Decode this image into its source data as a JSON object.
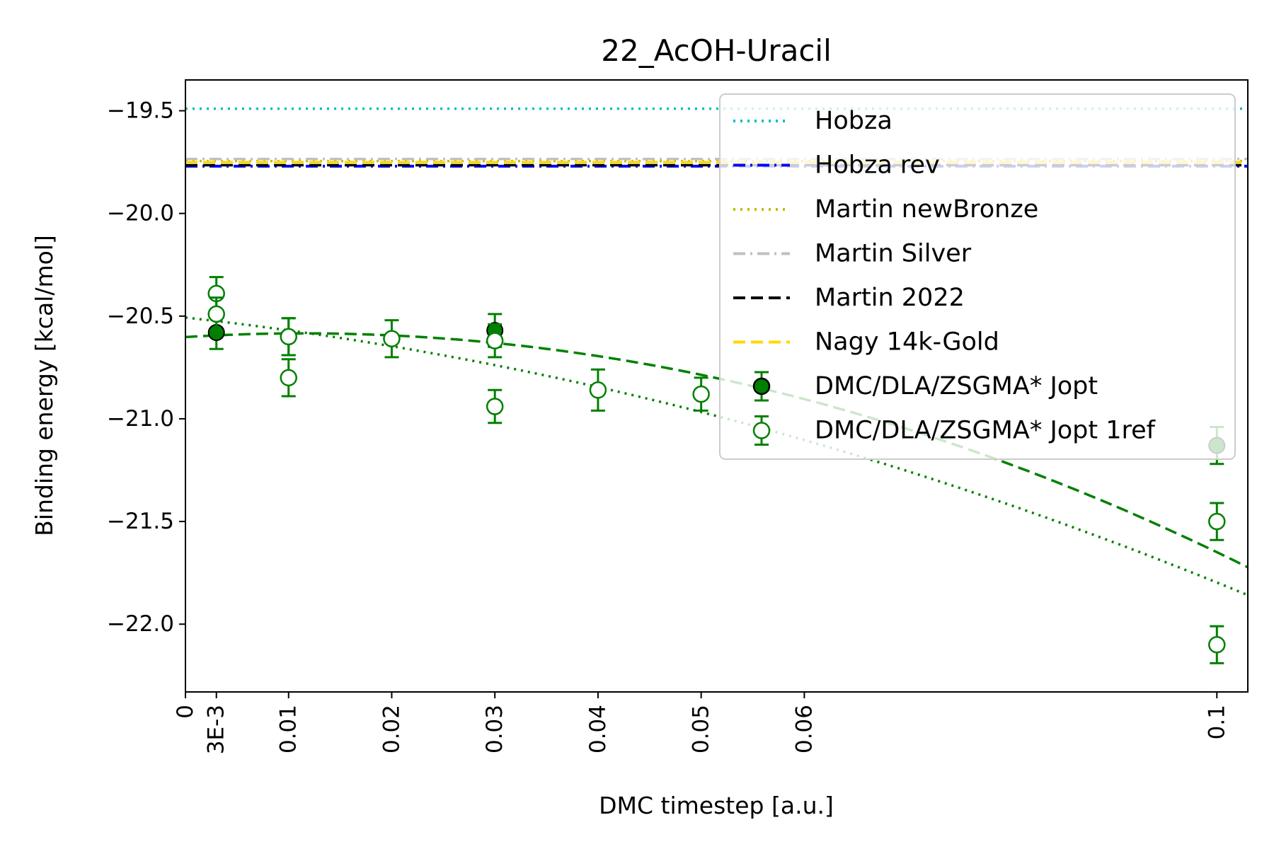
{
  "chart_data": {
    "type": "scatter",
    "title": "22_AcOH-Uracil",
    "xlabel": "DMC timestep [a.u.]",
    "ylabel": "Binding energy [kcal/mol]",
    "xlim": [
      0,
      0.103
    ],
    "ylim": [
      -22.33,
      -19.35
    ],
    "x_ticks": [
      {
        "value": 0,
        "label": "0"
      },
      {
        "value": 0.003,
        "label": "3E-3"
      },
      {
        "value": 0.01,
        "label": "0.01"
      },
      {
        "value": 0.02,
        "label": "0.02"
      },
      {
        "value": 0.03,
        "label": "0.03"
      },
      {
        "value": 0.04,
        "label": "0.04"
      },
      {
        "value": 0.05,
        "label": "0.05"
      },
      {
        "value": 0.06,
        "label": "0.06"
      },
      {
        "value": 0.1,
        "label": "0.1"
      }
    ],
    "y_ticks": [
      {
        "value": -19.5,
        "label": "−19.5"
      },
      {
        "value": -20.0,
        "label": "−20.0"
      },
      {
        "value": -20.5,
        "label": "−20.5"
      },
      {
        "value": -21.0,
        "label": "−21.0"
      },
      {
        "value": -21.5,
        "label": "−21.5"
      },
      {
        "value": -22.0,
        "label": "−22.0"
      }
    ],
    "reference_lines": [
      {
        "name": "Hobza",
        "y": -19.49,
        "color": "#00bfbf",
        "style": "dotted"
      },
      {
        "name": "Hobza rev",
        "y": -19.77,
        "color": "#0000ff",
        "style": "dashdot"
      },
      {
        "name": "Martin newBronze",
        "y": -19.745,
        "color": "#bfbf00",
        "style": "dotted"
      },
      {
        "name": "Martin Silver",
        "y": -19.735,
        "color": "#c0c0c0",
        "style": "dashdot"
      },
      {
        "name": "Martin 2022",
        "y": -19.765,
        "color": "#000000",
        "style": "dashed"
      },
      {
        "name": "Nagy 14k-Gold",
        "y": -19.75,
        "color": "#ffd700",
        "style": "dashed"
      }
    ],
    "series": [
      {
        "name": "DMC/DLA/ZSGMA* Jopt",
        "marker": "filled",
        "color": "#008000",
        "points": [
          {
            "x": 0.003,
            "y": -20.58,
            "err": 0.08
          },
          {
            "x": 0.01,
            "y": -20.6,
            "err": 0.09
          },
          {
            "x": 0.03,
            "y": -20.57,
            "err": 0.08
          },
          {
            "x": 0.1,
            "y": -21.13,
            "err": 0.09
          }
        ],
        "fit": {
          "style": "dashed",
          "a": -20.602,
          "b": 3.125,
          "c": -136
        }
      },
      {
        "name": "DMC/DLA/ZSGMA* Jopt 1ref",
        "marker": "open",
        "color": "#008000",
        "points": [
          {
            "x": 0.003,
            "y": -20.39,
            "err": 0.08
          },
          {
            "x": 0.003,
            "y": -20.49,
            "err": 0.08
          },
          {
            "x": 0.01,
            "y": -20.6,
            "err": 0.09
          },
          {
            "x": 0.01,
            "y": -20.8,
            "err": 0.09
          },
          {
            "x": 0.02,
            "y": -20.61,
            "err": 0.09
          },
          {
            "x": 0.03,
            "y": -20.62,
            "err": 0.08
          },
          {
            "x": 0.03,
            "y": -20.94,
            "err": 0.08
          },
          {
            "x": 0.04,
            "y": -20.86,
            "err": 0.1
          },
          {
            "x": 0.05,
            "y": -20.88,
            "err": 0.08
          },
          {
            "x": 0.1,
            "y": -21.5,
            "err": 0.09
          },
          {
            "x": 0.1,
            "y": -22.1,
            "err": 0.09
          }
        ],
        "fit": {
          "style": "dotted",
          "a": -20.507,
          "b": -5.5,
          "c": -74
        }
      }
    ],
    "legend": {
      "placement": "upper right",
      "entries": [
        "Hobza",
        "Hobza rev",
        "Martin newBronze",
        "Martin Silver",
        "Martin 2022",
        "Nagy 14k-Gold",
        "DMC/DLA/ZSGMA* Jopt",
        "DMC/DLA/ZSGMA* Jopt 1ref"
      ]
    }
  }
}
